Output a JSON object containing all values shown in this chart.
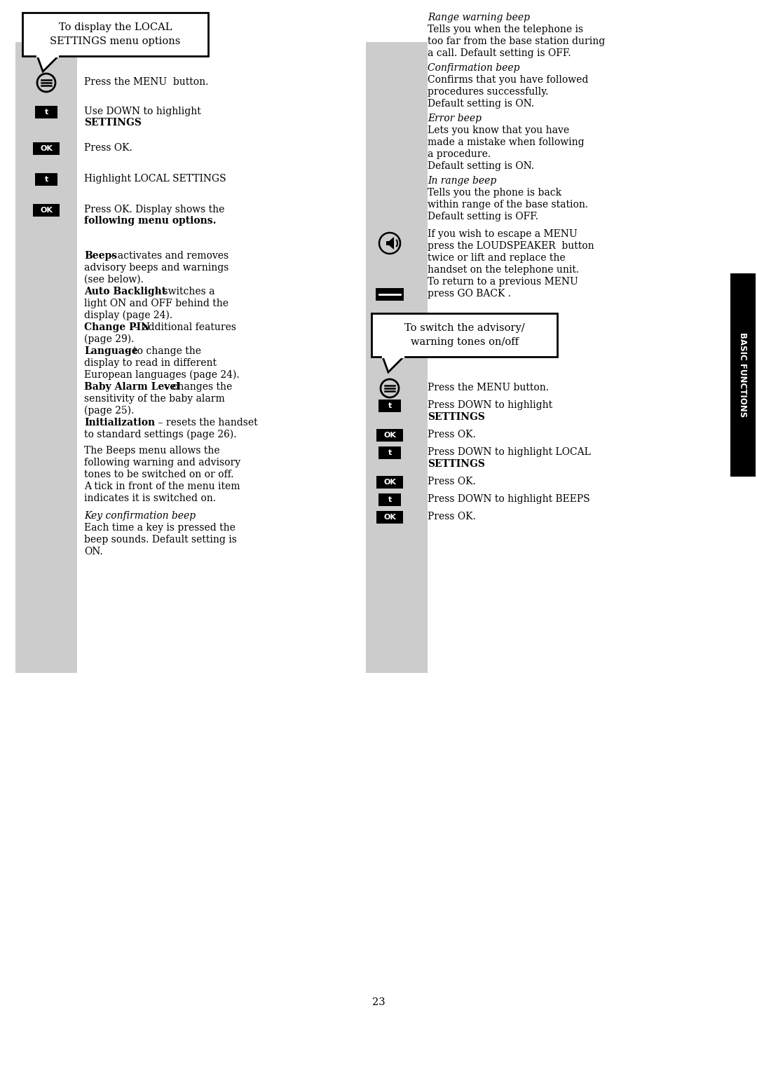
{
  "page_bg": "#ffffff",
  "gray_strip_color": "#cccccc",
  "sidebar_color": "#000000",
  "sidebar_text": "BASIC FUNCTIONS",
  "box1_title_line1": "To display the LOCAL",
  "box1_title_line2": "SETTINGS menu options",
  "box2_title_line1": "To switch the advisory/",
  "box2_title_line2": "warning tones on/off",
  "page_number": "23",
  "left_steps": [
    {
      "icon": "menu",
      "text1": "Press the MENU  button.",
      "text2": ""
    },
    {
      "icon": "t",
      "text1": "Use DOWN to highlight",
      "text2": "SETTINGS"
    },
    {
      "icon": "ok",
      "text1": "Press OK.",
      "text2": ""
    },
    {
      "icon": "t",
      "text1": "Highlight LOCAL SETTINGS",
      "text2": ""
    },
    {
      "icon": "ok",
      "text1": "Press OK. Display shows the",
      "text2": "following menu options."
    }
  ],
  "body_paras": [
    {
      "bold": "Beeps",
      "normal": " – activates and removes",
      "line2": "advisory beeps and warnings",
      "line3": "(see below)."
    },
    {
      "bold": "Auto Backlight",
      "normal": "   – switches a",
      "line2": "light ON and OFF behind the",
      "line3": "display (page 24)."
    },
    {
      "bold": "Change PIN",
      "normal": "  – additional features",
      "line2": "(page 29).",
      "line3": ""
    },
    {
      "bold": "Language",
      "normal": "  – to change the",
      "line2": "display to read in different",
      "line3": "European languages (page 24)."
    },
    {
      "bold": "Baby Alarm Level",
      "normal": "   – changes the",
      "line2": "sensitivity of the baby alarm",
      "line3": "(page 25)."
    },
    {
      "bold": "Initialization",
      "normal": "    – resets the handset",
      "line2": "to standard settings (page 26).",
      "line3": ""
    }
  ],
  "beeps_para_lines": [
    "The Beeps menu allows the",
    "following warning and advisory",
    "tones to be switched on or off.",
    "A tick in front of the menu item",
    "indicates it is switched on."
  ],
  "key_confirm_heading": "Key confirmation beep",
  "key_confirm_lines": [
    "Each time a key is pressed the",
    "beep sounds. Default setting is",
    "ON."
  ],
  "right_sections": [
    {
      "heading": "Range warning beep",
      "lines": [
        "Tells you when the telephone is",
        "too far from the base station during",
        "a call. Default setting is OFF."
      ]
    },
    {
      "heading": "Confirmation beep",
      "lines": [
        "Confirms that you have followed",
        "procedures successfully.",
        "Default setting is ON."
      ]
    },
    {
      "heading": "Error beep",
      "lines": [
        "Lets you know that you have",
        "made a mistake when following",
        "a procedure.",
        "Default setting is ON."
      ]
    },
    {
      "heading": "In range beep",
      "lines": [
        "Tells you the phone is back",
        "within range of the base station.",
        "Default setting is OFF."
      ]
    }
  ],
  "loudspeaker_lines": [
    "If you wish to escape a MENU",
    "press the LOUDSPEAKER  button",
    "twice or lift and replace the",
    "handset on the telephone unit.",
    "To return to a previous MENU"
  ],
  "go_back_line": "press GO BACK .",
  "right_steps": [
    {
      "icon": "menu",
      "text1": "Press the MENU button.",
      "text2": ""
    },
    {
      "icon": "t",
      "text1": "Press DOWN to highlight",
      "text2": "SETTINGS"
    },
    {
      "icon": "ok",
      "text1": "Press OK.",
      "text2": ""
    },
    {
      "icon": "t",
      "text1": "Press DOWN to highlight LOCAL",
      "text2": "SETTINGS"
    },
    {
      "icon": "ok",
      "text1": "Press OK.",
      "text2": ""
    },
    {
      "icon": "t",
      "text1": "Press DOWN to highlight BEEPS",
      "text2": ""
    },
    {
      "icon": "ok",
      "text1": "Press OK.",
      "text2": ""
    }
  ]
}
